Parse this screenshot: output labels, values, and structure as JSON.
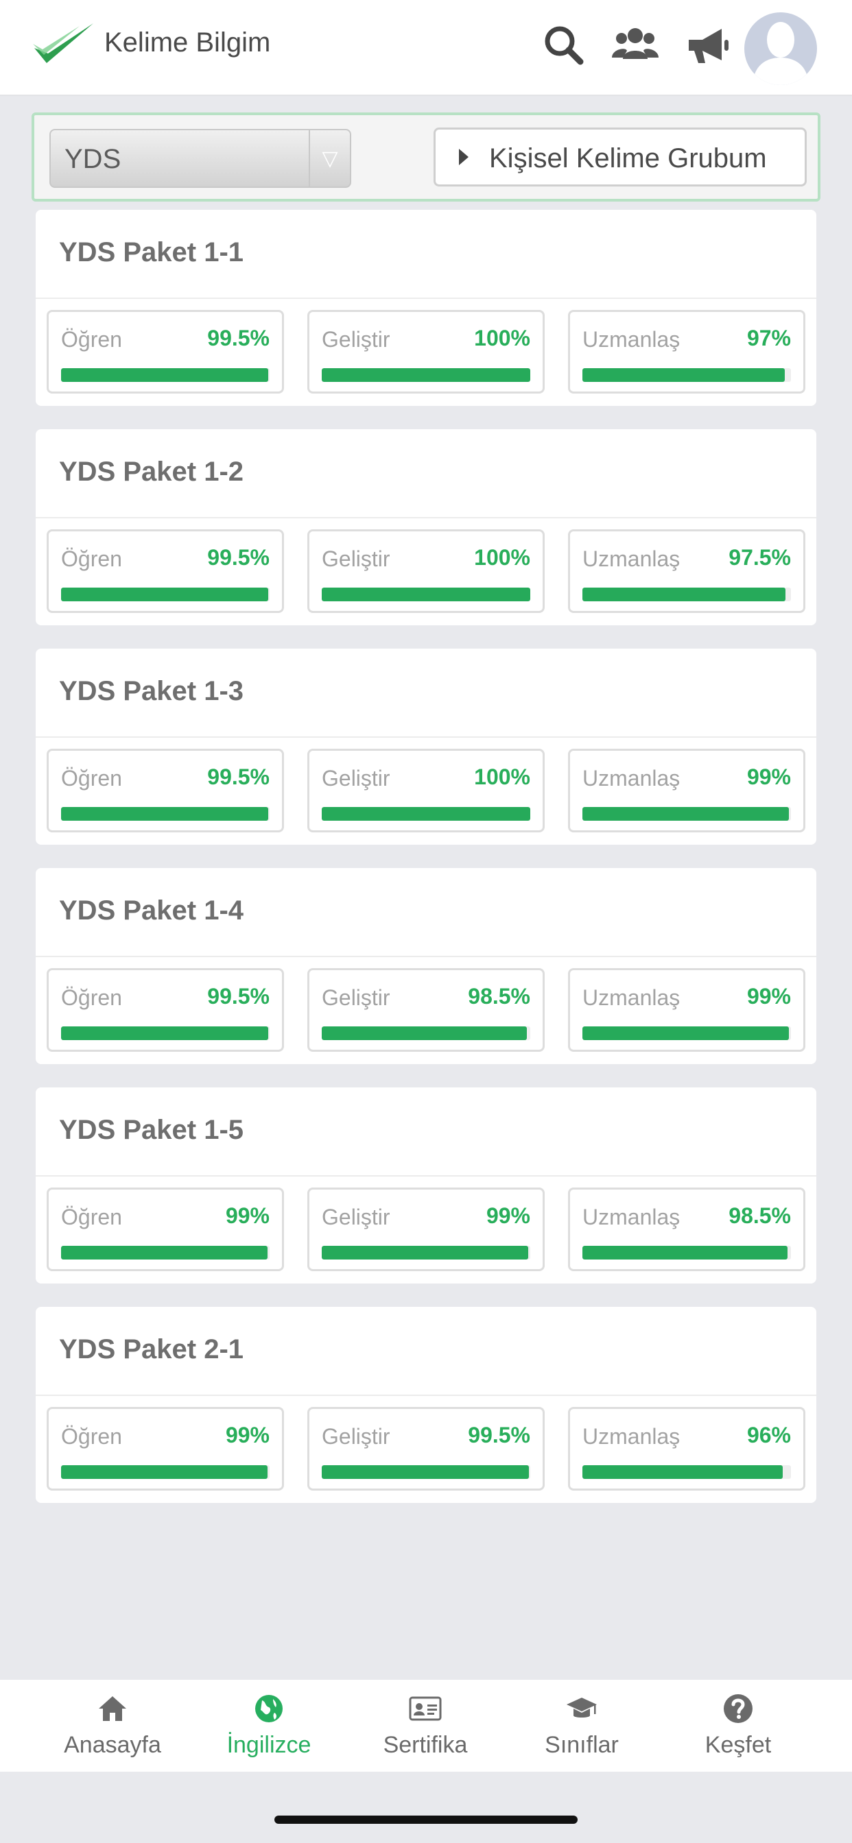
{
  "header": {
    "app_title": "Kelime Bilgim",
    "icons": [
      "logo-check-icon",
      "search-icon",
      "users-icon",
      "megaphone-icon",
      "avatar"
    ]
  },
  "filter": {
    "selected": "YDS",
    "group_button": "Kişisel Kelime Grubum"
  },
  "colors": {
    "accent": "#27ae5f",
    "bar": "#26aa5a",
    "background": "#e8e9ed"
  },
  "packages": [
    {
      "title": "YDS Paket 1-1",
      "stats": [
        {
          "label": "Öğren",
          "value": "99.5%",
          "percent": 99.5
        },
        {
          "label": "Geliştir",
          "value": "100%",
          "percent": 100
        },
        {
          "label": "Uzmanlaş",
          "value": "97%",
          "percent": 97
        }
      ]
    },
    {
      "title": "YDS Paket 1-2",
      "stats": [
        {
          "label": "Öğren",
          "value": "99.5%",
          "percent": 99.5
        },
        {
          "label": "Geliştir",
          "value": "100%",
          "percent": 100
        },
        {
          "label": "Uzmanlaş",
          "value": "97.5%",
          "percent": 97.5
        }
      ]
    },
    {
      "title": "YDS Paket 1-3",
      "stats": [
        {
          "label": "Öğren",
          "value": "99.5%",
          "percent": 99.5
        },
        {
          "label": "Geliştir",
          "value": "100%",
          "percent": 100
        },
        {
          "label": "Uzmanlaş",
          "value": "99%",
          "percent": 99
        }
      ]
    },
    {
      "title": "YDS Paket 1-4",
      "stats": [
        {
          "label": "Öğren",
          "value": "99.5%",
          "percent": 99.5
        },
        {
          "label": "Geliştir",
          "value": "98.5%",
          "percent": 98.5
        },
        {
          "label": "Uzmanlaş",
          "value": "99%",
          "percent": 99
        }
      ]
    },
    {
      "title": "YDS Paket 1-5",
      "stats": [
        {
          "label": "Öğren",
          "value": "99%",
          "percent": 99
        },
        {
          "label": "Geliştir",
          "value": "99%",
          "percent": 99
        },
        {
          "label": "Uzmanlaş",
          "value": "98.5%",
          "percent": 98.5
        }
      ]
    },
    {
      "title": "YDS Paket 2-1",
      "stats": [
        {
          "label": "Öğren",
          "value": "99%",
          "percent": 99
        },
        {
          "label": "Geliştir",
          "value": "99.5%",
          "percent": 99.5
        },
        {
          "label": "Uzmanlaş",
          "value": "96%",
          "percent": 96
        }
      ]
    }
  ],
  "tabbar": {
    "items": [
      {
        "label": "Anasayfa",
        "icon": "home-icon",
        "active": false
      },
      {
        "label": "İngilizce",
        "icon": "globe-icon",
        "active": true
      },
      {
        "label": "Sertifika",
        "icon": "id-card-icon",
        "active": false
      },
      {
        "label": "Sınıflar",
        "icon": "graduation-cap-icon",
        "active": false
      },
      {
        "label": "Keşfet",
        "icon": "question-icon",
        "active": false
      }
    ]
  }
}
